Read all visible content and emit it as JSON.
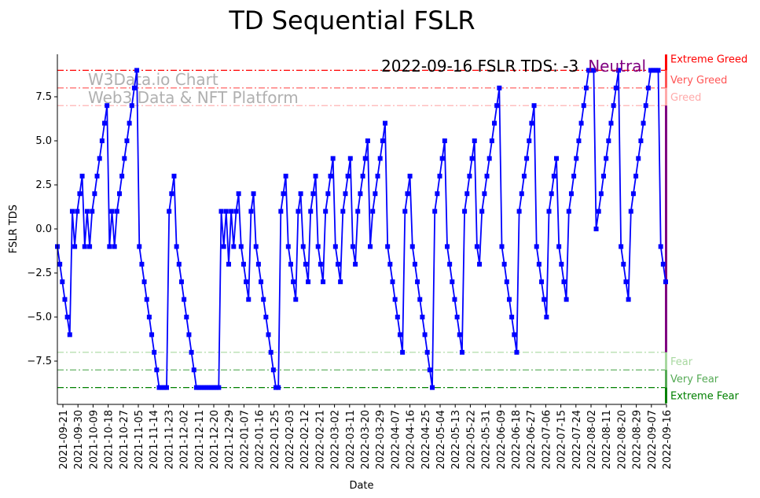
{
  "chart_data": {
    "type": "line",
    "title": "TD Sequential FSLR",
    "xlabel": "Date",
    "ylabel": "FSLR TDS",
    "ylim": [
      -9.9,
      9.9
    ],
    "yticks": [
      -7.5,
      -5.0,
      -2.5,
      0.0,
      2.5,
      5.0,
      7.5
    ],
    "ytick_labels": [
      "−7.5",
      "−5.0",
      "−2.5",
      "0.0",
      "2.5",
      "5.0",
      "7.5"
    ],
    "xtick_labels": [
      "2021-09-21",
      "2021-09-30",
      "2021-10-09",
      "2021-10-18",
      "2021-10-27",
      "2021-11-05",
      "2021-11-14",
      "2021-11-23",
      "2021-12-02",
      "2021-12-11",
      "2021-12-20",
      "2021-12-29",
      "2022-01-07",
      "2022-01-16",
      "2022-01-25",
      "2022-02-03",
      "2022-02-12",
      "2022-02-21",
      "2022-03-02",
      "2022-03-11",
      "2022-03-20",
      "2022-03-29",
      "2022-04-07",
      "2022-04-16",
      "2022-04-25",
      "2022-05-04",
      "2022-05-13",
      "2022-05-22",
      "2022-05-31",
      "2022-06-09",
      "2022-06-18",
      "2022-06-27",
      "2022-07-06",
      "2022-07-15",
      "2022-07-24",
      "2022-08-02",
      "2022-08-11",
      "2022-08-20",
      "2022-08-29",
      "2022-09-07",
      "2022-09-16"
    ],
    "series": [
      {
        "name": "FSLR TDS",
        "color": "#0000ff",
        "values": [
          -1,
          -2,
          -3,
          -4,
          -5,
          -6,
          1,
          -1,
          1,
          2,
          3,
          -1,
          1,
          -1,
          1,
          2,
          3,
          4,
          5,
          6,
          7,
          -1,
          1,
          -1,
          1,
          2,
          3,
          4,
          5,
          6,
          7,
          8,
          9,
          -1,
          -2,
          -3,
          -4,
          -5,
          -6,
          -7,
          -8,
          -9,
          -9,
          -9,
          -9,
          1,
          2,
          3,
          -1,
          -2,
          -3,
          -4,
          -5,
          -6,
          -7,
          -8,
          -9,
          -9,
          -9,
          -9,
          -9,
          -9,
          -9,
          -9,
          -9,
          -9,
          1,
          -1,
          1,
          -2,
          1,
          -1,
          1,
          2,
          -1,
          -2,
          -3,
          -4,
          1,
          2,
          -1,
          -2,
          -3,
          -4,
          -5,
          -6,
          -7,
          -8,
          -9,
          -9,
          1,
          2,
          3,
          -1,
          -2,
          -3,
          -4,
          1,
          2,
          -1,
          -2,
          -3,
          1,
          2,
          3,
          -1,
          -2,
          -3,
          1,
          2,
          3,
          4,
          -1,
          -2,
          -3,
          1,
          2,
          3,
          4,
          -1,
          -2,
          1,
          2,
          3,
          4,
          5,
          -1,
          1,
          2,
          3,
          4,
          5,
          6,
          -1,
          -2,
          -3,
          -4,
          -5,
          -6,
          -7,
          1,
          2,
          3,
          -1,
          -2,
          -3,
          -4,
          -5,
          -6,
          -7,
          -8,
          -9,
          1,
          2,
          3,
          4,
          5,
          -1,
          -2,
          -3,
          -4,
          -5,
          -6,
          -7,
          1,
          2,
          3,
          4,
          5,
          -1,
          -2,
          1,
          2,
          3,
          4,
          5,
          6,
          7,
          8,
          -1,
          -2,
          -3,
          -4,
          -5,
          -6,
          -7,
          1,
          2,
          3,
          4,
          5,
          6,
          7,
          -1,
          -2,
          -3,
          -4,
          -5,
          1,
          2,
          3,
          4,
          -1,
          -2,
          -3,
          -4,
          1,
          2,
          3,
          4,
          5,
          6,
          7,
          8,
          9,
          9,
          9,
          0,
          1,
          2,
          3,
          4,
          5,
          6,
          7,
          8,
          9,
          -1,
          -2,
          -3,
          -4,
          1,
          2,
          3,
          4,
          5,
          6,
          7,
          8,
          9,
          9,
          9,
          9,
          -1,
          -2,
          -3
        ]
      }
    ],
    "levels": [
      {
        "value": 9,
        "label": "Extreme Greed",
        "color": "#ff0000"
      },
      {
        "value": 8,
        "label": "Very Greed",
        "color": "#ff5555"
      },
      {
        "value": 7,
        "label": "Greed",
        "color": "#ffaaaa"
      },
      {
        "value": -7,
        "label": "Fear",
        "color": "#a8d8a0"
      },
      {
        "value": -8,
        "label": "Very Fear",
        "color": "#55aa55"
      },
      {
        "value": -9,
        "label": "Extreme Fear",
        "color": "#008000"
      }
    ],
    "neutral_color": "#800080",
    "annotation": {
      "text": "2022-09-16 FSLR TDS: -3",
      "status": "Neutral",
      "status_color": "#800080"
    },
    "watermark": {
      "line1": "W3Data.io Chart",
      "line2": "Web3 Data & NFT Platform"
    }
  }
}
